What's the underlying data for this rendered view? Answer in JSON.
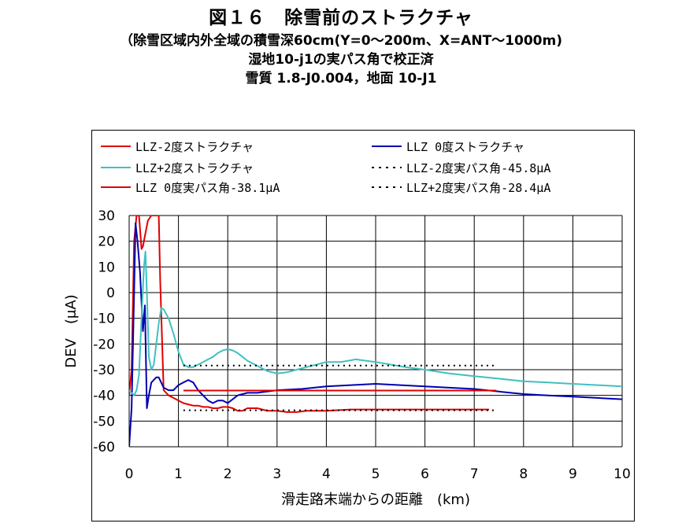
{
  "header": {
    "title": "図１６　除雪前のストラクチャ",
    "line2": "（除雪区域内外全域の積雪深60cm(Y=0～200m、X=ANT～1000m)",
    "line3": "湿地10-j1の実パス角で校正済",
    "line4": "雪質 1.8-J0.004，地面 10-J1"
  },
  "chart_data": {
    "type": "line",
    "xlabel": "滑走路末端からの距離　(km)",
    "ylabel": "DEV　(μA)",
    "xlim": [
      0,
      10
    ],
    "ylim": [
      -60,
      30
    ],
    "xticks": [
      "0",
      "1",
      "2",
      "3",
      "4",
      "5",
      "6",
      "7",
      "8",
      "9",
      "10"
    ],
    "yticks": [
      "30",
      "20",
      "10",
      "0",
      "-10",
      "-20",
      "-30",
      "-40",
      "-50",
      "-60"
    ],
    "grid": true,
    "legend_position": "top",
    "series": [
      {
        "name": "LLZ-2度ストラクチャ",
        "color": "#e00000",
        "dash": "none",
        "x": [
          0,
          0.05,
          0.1,
          0.15,
          0.2,
          0.25,
          0.28,
          0.32,
          0.38,
          0.45,
          0.5,
          0.55,
          0.6,
          0.63,
          0.7,
          0.8,
          0.9,
          1.0,
          1.1,
          1.2,
          1.3,
          1.4,
          1.5,
          1.6,
          1.7,
          1.8,
          1.9,
          2.0,
          2.1,
          2.2,
          2.3,
          2.4,
          2.5,
          2.6,
          2.7,
          2.8,
          2.9,
          3.0,
          3.2,
          3.4,
          3.6,
          3.8,
          4.0,
          4.5,
          5.0,
          6.0,
          7.0,
          7.3
        ],
        "y": [
          -40,
          -30,
          20,
          30,
          30,
          17,
          18,
          22,
          28,
          30,
          30,
          30,
          30,
          5,
          -38,
          -40,
          -41,
          -42,
          -43,
          -43.5,
          -44,
          -44,
          -44.5,
          -44.5,
          -45,
          -45,
          -44.5,
          -44.5,
          -45,
          -46,
          -46,
          -45,
          -45,
          -45,
          -45.5,
          -46,
          -46,
          -46,
          -46.5,
          -46.5,
          -46,
          -46,
          -46,
          -45.5,
          -45.5,
          -45.5,
          -45.5,
          -45.5
        ]
      },
      {
        "name": "LLZ 0度ストラクチャ",
        "color": "#0000b0",
        "dash": "none",
        "x": [
          0,
          0.05,
          0.1,
          0.13,
          0.17,
          0.22,
          0.28,
          0.32,
          0.36,
          0.4,
          0.45,
          0.5,
          0.55,
          0.6,
          0.65,
          0.7,
          0.8,
          0.9,
          1.0,
          1.1,
          1.2,
          1.3,
          1.4,
          1.5,
          1.6,
          1.7,
          1.8,
          1.9,
          2.0,
          2.2,
          2.4,
          2.6,
          2.8,
          3.0,
          3.5,
          4.0,
          4.5,
          5.0,
          5.5,
          6.0,
          6.5,
          7.0,
          7.5,
          8.0,
          8.5,
          9.0,
          9.5,
          10.0
        ],
        "y": [
          -60,
          -45,
          0,
          27,
          20,
          8,
          -15,
          -5,
          -45,
          -40,
          -35,
          -34,
          -33,
          -33,
          -35,
          -37,
          -38,
          -38,
          -36,
          -35,
          -34,
          -35,
          -38,
          -40,
          -42,
          -43,
          -42,
          -42,
          -43,
          -40,
          -39,
          -39,
          -38.5,
          -38,
          -37.5,
          -36.5,
          -36,
          -35.5,
          -36,
          -36.5,
          -37,
          -37.5,
          -38.5,
          -39.5,
          -40,
          -40.5,
          -41,
          -41.5
        ]
      },
      {
        "name": "LLZ+2度ストラクチャ",
        "color": "#40c0c0",
        "dash": "none",
        "x": [
          0,
          0.1,
          0.15,
          0.2,
          0.25,
          0.3,
          0.33,
          0.36,
          0.4,
          0.45,
          0.5,
          0.55,
          0.6,
          0.65,
          0.7,
          0.8,
          0.9,
          1.0,
          1.1,
          1.2,
          1.3,
          1.4,
          1.5,
          1.6,
          1.7,
          1.8,
          1.9,
          2.0,
          2.1,
          2.2,
          2.3,
          2.4,
          2.6,
          2.8,
          3.0,
          3.2,
          3.4,
          3.6,
          3.8,
          4.0,
          4.3,
          4.6,
          4.8,
          5.0,
          5.3,
          5.6,
          6.0,
          6.5,
          7.0,
          7.5,
          8.0,
          8.5,
          9.0,
          9.5,
          10.0
        ],
        "y": [
          -38,
          -40,
          -38,
          -32,
          -10,
          10,
          16,
          0,
          -25,
          -30,
          -28,
          -20,
          -12,
          -6,
          -6.5,
          -10,
          -16,
          -23,
          -28,
          -29,
          -29,
          -28,
          -27,
          -26,
          -25,
          -23.5,
          -22.5,
          -22,
          -22.5,
          -23.5,
          -25,
          -26.5,
          -28.5,
          -30.5,
          -31.5,
          -31,
          -30,
          -29,
          -28,
          -27,
          -27,
          -26,
          -26.5,
          -27,
          -28,
          -29,
          -30,
          -31.5,
          -32.5,
          -33.5,
          -34.5,
          -35,
          -35.5,
          -36,
          -36.5
        ]
      },
      {
        "name": "LLZ-2度実パス角-45.8μA",
        "color": "#000000",
        "dash": "2,5",
        "x": [
          1.1,
          7.45
        ],
        "y": [
          -45.8,
          -45.8
        ]
      },
      {
        "name": "LLZ 0度実パス角-38.1μA",
        "color": "#e00000",
        "dash": "none",
        "x": [
          1.1,
          7.45
        ],
        "y": [
          -38.1,
          -38.1
        ]
      },
      {
        "name": "LLZ+2度実パス角-28.4μA",
        "color": "#000000",
        "dash": "2,5",
        "x": [
          1.1,
          7.45
        ],
        "y": [
          -28.4,
          -28.4
        ]
      }
    ]
  }
}
